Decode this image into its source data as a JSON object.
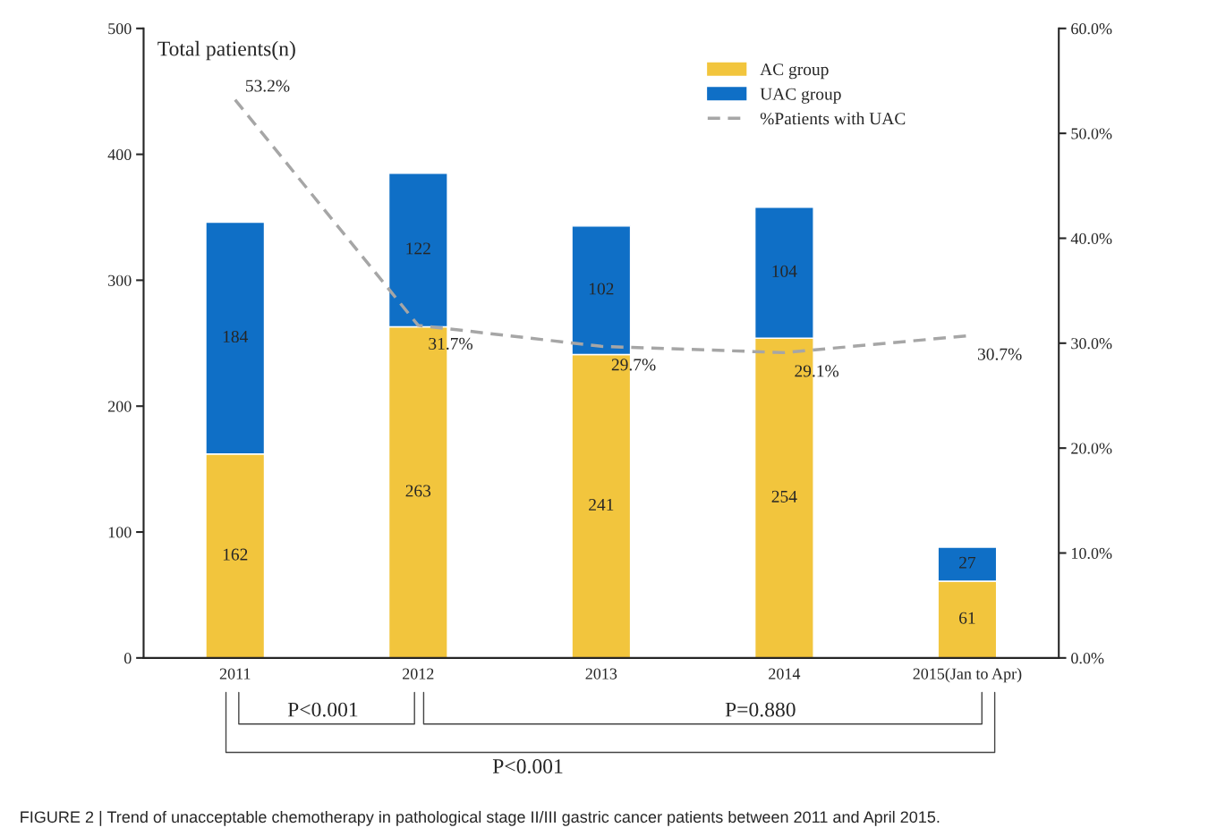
{
  "chart_data": {
    "type": "bar",
    "stacked": true,
    "categories": [
      "2011",
      "2012",
      "2013",
      "2014",
      "2015(Jan to Apr)"
    ],
    "series": [
      {
        "name": "AC group",
        "color": "#f2c53d",
        "values": [
          162,
          263,
          241,
          254,
          61
        ]
      },
      {
        "name": "UAC group",
        "color": "#0f6fc6",
        "values": [
          184,
          122,
          102,
          104,
          27
        ]
      },
      {
        "name": "%Patients with UAC",
        "type": "line",
        "axis": "y2",
        "color": "#a6a6a6",
        "line_style": "dashed",
        "values": [
          53.2,
          31.7,
          29.7,
          29.1,
          30.7
        ],
        "value_labels": [
          "53.2%",
          "31.7%",
          "29.7%",
          "29.1%",
          "30.7%"
        ]
      }
    ],
    "ylabel": "Total patients(n)",
    "ylim": [
      0,
      500
    ],
    "yticks": [
      0,
      100,
      200,
      300,
      400,
      500
    ],
    "y2lim": [
      0,
      60
    ],
    "y2ticks": [
      {
        "value": 0,
        "label": "0.0%"
      },
      {
        "value": 10,
        "label": "10.0%"
      },
      {
        "value": 20,
        "label": "20.0%"
      },
      {
        "value": 30,
        "label": "30.0%"
      },
      {
        "value": 40,
        "label": "40.0%"
      },
      {
        "value": 50,
        "label": "50.0%"
      },
      {
        "value": 60,
        "label": "60.0%"
      }
    ],
    "data_labels": true,
    "legend": "top right",
    "grid": false,
    "annotations": [
      "P<0.001",
      "P=0.880",
      "P<0.001",
      "FIGURE 2 | Trend of unacceptable chemotherapy in pathological stage II/III gastric cancer patients between 2011 and April 2015."
    ]
  }
}
